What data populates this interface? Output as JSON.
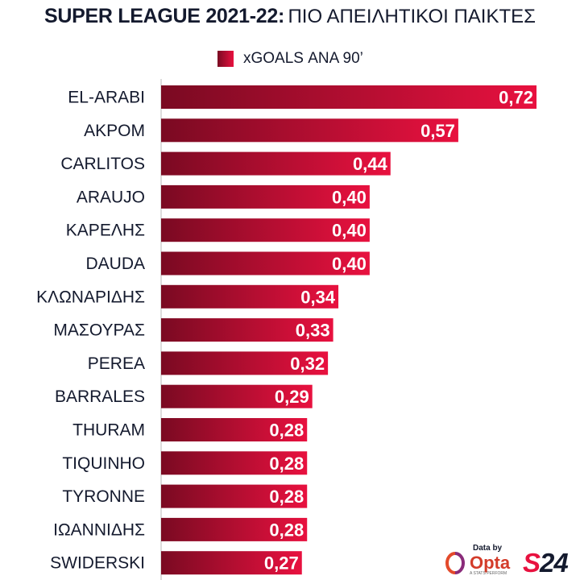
{
  "title": {
    "bold": "SUPER LEAGUE 2021-22:",
    "rest": "ΠΙΟ ΑΠΕΙΛΗΤΙΚΟΙ ΠΑΙΚΤΕΣ"
  },
  "legend": {
    "label": "xGOALS ΑΝΑ 90’"
  },
  "branding": {
    "data_by": "Data by",
    "opta": "Opta",
    "opta_sub": "A STATS PERFORM",
    "s24_s": "S",
    "s24_num": "24"
  },
  "colors": {
    "bar_dark": "#7a0a22",
    "bar_light": "#e8113f",
    "title": "#141a2e"
  },
  "chart_data": {
    "type": "bar",
    "orientation": "horizontal",
    "categories": [
      "EL-ARABI",
      "ΑΚΡΟΜ",
      "CARLITOS",
      "ARAUJO",
      "ΚΑΡΕΛΗΣ",
      "DAUDA",
      "ΚΛΩΝΑΡΙΔΗΣ",
      "ΜΑΣΟΥΡΑΣ",
      "PEREA",
      "BARRALES",
      "THURAM",
      "TIQUINHO",
      "TYRONNE",
      "ΙΩΑΝΝΙΔΗΣ",
      "SWIDERSKI"
    ],
    "values": [
      0.72,
      0.57,
      0.44,
      0.4,
      0.4,
      0.4,
      0.34,
      0.33,
      0.32,
      0.29,
      0.28,
      0.28,
      0.28,
      0.28,
      0.27
    ],
    "value_labels": [
      "0,72",
      "0,57",
      "0,44",
      "0,40",
      "0,40",
      "0,40",
      "0,34",
      "0,33",
      "0,32",
      "0,29",
      "0,28",
      "0,28",
      "0,28",
      "0,28",
      "0,27"
    ],
    "series": [
      {
        "name": "xGOALS ΑΝΑ 90’"
      }
    ],
    "xlim": [
      0,
      0.72
    ],
    "grid": false,
    "legend_position": "top"
  }
}
